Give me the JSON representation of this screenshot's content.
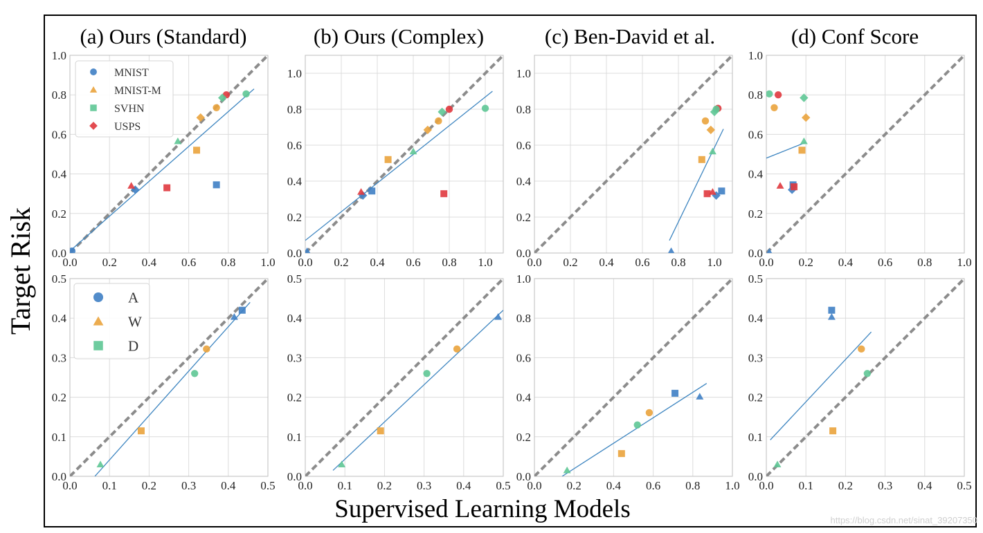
{
  "figure": {
    "ylabel": "Target Risk",
    "xlabel": "Supervised Learning Models",
    "watermark": "https://blog.csdn.net/sinat_39207350",
    "colors": {
      "blue": "#3f7fc4",
      "orange": "#eaa33c",
      "green": "#5ec795",
      "red": "#e0393e",
      "fit": "#3d85c0",
      "diagonal": "#8c8c8c",
      "grid": "#dcdcdc",
      "spine": "#bdbdbd"
    }
  },
  "legends": [
    {
      "panel": 0,
      "entries": [
        {
          "label": "MNIST",
          "color": "blue",
          "marker": "circle"
        },
        {
          "label": "MNIST-M",
          "color": "orange",
          "marker": "triangle"
        },
        {
          "label": "SVHN",
          "color": "green",
          "marker": "square"
        },
        {
          "label": "USPS",
          "color": "red",
          "marker": "diamond"
        }
      ]
    },
    {
      "panel": 4,
      "entries": [
        {
          "label": "A",
          "color": "blue",
          "marker": "circle"
        },
        {
          "label": "W",
          "color": "orange",
          "marker": "triangle"
        },
        {
          "label": "D",
          "color": "green",
          "marker": "square"
        }
      ]
    }
  ],
  "chart_data": [
    {
      "type": "scatter",
      "title": "(a) Ours (Standard)",
      "xlim": [
        0,
        1.0
      ],
      "ylim": [
        0,
        1.0
      ],
      "xticks": [
        "0.0",
        "0.2",
        "0.4",
        "0.6",
        "0.8",
        "1.0"
      ],
      "yticks": [
        "0.0",
        "0.2",
        "0.4",
        "0.6",
        "0.8",
        "1.0"
      ],
      "diagonal": true,
      "fit_line": [
        [
          0.0,
          0.01
        ],
        [
          0.93,
          0.83
        ]
      ],
      "points": [
        {
          "x": 0.01,
          "y": 0.01,
          "color": "blue",
          "marker": "circle"
        },
        {
          "x": 0.33,
          "y": 0.32,
          "color": "blue",
          "marker": "diamond"
        },
        {
          "x": 0.74,
          "y": 0.345,
          "color": "blue",
          "marker": "square"
        },
        {
          "x": 0.31,
          "y": 0.34,
          "color": "red",
          "marker": "triangle"
        },
        {
          "x": 0.49,
          "y": 0.33,
          "color": "red",
          "marker": "square"
        },
        {
          "x": 0.79,
          "y": 0.8,
          "color": "red",
          "marker": "circle"
        },
        {
          "x": 0.64,
          "y": 0.52,
          "color": "orange",
          "marker": "square"
        },
        {
          "x": 0.66,
          "y": 0.685,
          "color": "orange",
          "marker": "diamond"
        },
        {
          "x": 0.74,
          "y": 0.735,
          "color": "orange",
          "marker": "circle"
        },
        {
          "x": 0.545,
          "y": 0.565,
          "color": "green",
          "marker": "triangle"
        },
        {
          "x": 0.77,
          "y": 0.785,
          "color": "green",
          "marker": "diamond"
        },
        {
          "x": 0.89,
          "y": 0.805,
          "color": "green",
          "marker": "circle"
        }
      ]
    },
    {
      "type": "scatter",
      "title": "(b) Ours (Complex)",
      "xlim": [
        0,
        1.1
      ],
      "ylim": [
        0,
        1.1
      ],
      "xticks": [
        "0.0",
        "0.2",
        "0.4",
        "0.6",
        "0.8",
        "1.0"
      ],
      "yticks": [
        "0.0",
        "0.2",
        "0.4",
        "0.6",
        "0.8",
        "1.0"
      ],
      "diagonal": true,
      "fit_line": [
        [
          0.0,
          0.07
        ],
        [
          1.04,
          0.9
        ]
      ],
      "points": [
        {
          "x": 0.01,
          "y": 0.01,
          "color": "blue",
          "marker": "triangle"
        },
        {
          "x": 0.32,
          "y": 0.32,
          "color": "blue",
          "marker": "diamond"
        },
        {
          "x": 0.37,
          "y": 0.345,
          "color": "blue",
          "marker": "square"
        },
        {
          "x": 0.31,
          "y": 0.34,
          "color": "red",
          "marker": "triangle"
        },
        {
          "x": 0.77,
          "y": 0.33,
          "color": "red",
          "marker": "square"
        },
        {
          "x": 0.8,
          "y": 0.8,
          "color": "red",
          "marker": "circle"
        },
        {
          "x": 0.46,
          "y": 0.52,
          "color": "orange",
          "marker": "square"
        },
        {
          "x": 0.68,
          "y": 0.685,
          "color": "orange",
          "marker": "diamond"
        },
        {
          "x": 0.74,
          "y": 0.735,
          "color": "orange",
          "marker": "circle"
        },
        {
          "x": 0.6,
          "y": 0.565,
          "color": "green",
          "marker": "triangle"
        },
        {
          "x": 0.76,
          "y": 0.785,
          "color": "green",
          "marker": "diamond"
        },
        {
          "x": 1.0,
          "y": 0.805,
          "color": "green",
          "marker": "circle"
        }
      ]
    },
    {
      "type": "scatter",
      "title": "(c) Ben-David et al.",
      "xlim": [
        0,
        1.1
      ],
      "ylim": [
        0,
        1.1
      ],
      "xticks": [
        "0.0",
        "0.2",
        "0.4",
        "0.6",
        "0.8",
        "1.0"
      ],
      "yticks": [
        "0.0",
        "0.2",
        "0.4",
        "0.6",
        "0.8",
        "1.0"
      ],
      "diagonal": true,
      "fit_line": [
        [
          0.75,
          0.07
        ],
        [
          1.05,
          0.69
        ]
      ],
      "points": [
        {
          "x": 0.76,
          "y": 0.01,
          "color": "blue",
          "marker": "triangle"
        },
        {
          "x": 1.01,
          "y": 0.32,
          "color": "blue",
          "marker": "diamond"
        },
        {
          "x": 1.04,
          "y": 0.345,
          "color": "blue",
          "marker": "square"
        },
        {
          "x": 0.99,
          "y": 0.34,
          "color": "red",
          "marker": "triangle"
        },
        {
          "x": 0.96,
          "y": 0.33,
          "color": "red",
          "marker": "square"
        },
        {
          "x": 1.02,
          "y": 0.805,
          "color": "red",
          "marker": "circle"
        },
        {
          "x": 0.93,
          "y": 0.52,
          "color": "orange",
          "marker": "square"
        },
        {
          "x": 0.98,
          "y": 0.685,
          "color": "orange",
          "marker": "diamond"
        },
        {
          "x": 0.95,
          "y": 0.735,
          "color": "orange",
          "marker": "circle"
        },
        {
          "x": 0.99,
          "y": 0.565,
          "color": "green",
          "marker": "triangle"
        },
        {
          "x": 1.0,
          "y": 0.785,
          "color": "green",
          "marker": "diamond"
        },
        {
          "x": 1.01,
          "y": 0.8,
          "color": "green",
          "marker": "circle"
        }
      ]
    },
    {
      "type": "scatter",
      "title": "(d) Conf Score",
      "xlim": [
        0,
        1.0
      ],
      "ylim": [
        0,
        1.0
      ],
      "xticks": [
        "0.0",
        "0.2",
        "0.4",
        "0.6",
        "0.8",
        "1.0"
      ],
      "yticks": [
        "0.0",
        "0.2",
        "0.4",
        "0.6",
        "0.8",
        "1.0"
      ],
      "diagonal": true,
      "fit_line": [
        [
          0.0,
          0.48
        ],
        [
          0.2,
          0.56
        ]
      ],
      "points": [
        {
          "x": 0.015,
          "y": 0.005,
          "color": "blue",
          "marker": "triangle"
        },
        {
          "x": 0.13,
          "y": 0.32,
          "color": "blue",
          "marker": "diamond"
        },
        {
          "x": 0.135,
          "y": 0.345,
          "color": "blue",
          "marker": "square"
        },
        {
          "x": 0.07,
          "y": 0.34,
          "color": "red",
          "marker": "triangle"
        },
        {
          "x": 0.14,
          "y": 0.335,
          "color": "red",
          "marker": "square"
        },
        {
          "x": 0.06,
          "y": 0.8,
          "color": "red",
          "marker": "circle"
        },
        {
          "x": 0.18,
          "y": 0.52,
          "color": "orange",
          "marker": "square"
        },
        {
          "x": 0.2,
          "y": 0.685,
          "color": "orange",
          "marker": "diamond"
        },
        {
          "x": 0.04,
          "y": 0.735,
          "color": "orange",
          "marker": "circle"
        },
        {
          "x": 0.19,
          "y": 0.565,
          "color": "green",
          "marker": "triangle"
        },
        {
          "x": 0.19,
          "y": 0.785,
          "color": "green",
          "marker": "diamond"
        },
        {
          "x": 0.015,
          "y": 0.805,
          "color": "green",
          "marker": "circle"
        }
      ]
    },
    {
      "type": "scatter",
      "title": "",
      "xlim": [
        0,
        0.5
      ],
      "ylim": [
        0,
        0.5
      ],
      "xticks": [
        "0.0",
        "0.1",
        "0.2",
        "0.3",
        "0.4",
        "0.5"
      ],
      "yticks": [
        "0.0",
        "0.1",
        "0.2",
        "0.3",
        "0.4",
        "0.5"
      ],
      "diagonal": true,
      "fit_line": [
        [
          0.063,
          0.0
        ],
        [
          0.455,
          0.44
        ]
      ],
      "points": [
        {
          "x": 0.077,
          "y": 0.03,
          "color": "green",
          "marker": "triangle"
        },
        {
          "x": 0.18,
          "y": 0.115,
          "color": "orange",
          "marker": "square"
        },
        {
          "x": 0.315,
          "y": 0.26,
          "color": "green",
          "marker": "circle"
        },
        {
          "x": 0.345,
          "y": 0.322,
          "color": "orange",
          "marker": "circle"
        },
        {
          "x": 0.415,
          "y": 0.403,
          "color": "blue",
          "marker": "triangle"
        },
        {
          "x": 0.435,
          "y": 0.42,
          "color": "blue",
          "marker": "square"
        }
      ]
    },
    {
      "type": "scatter",
      "title": "",
      "xlim": [
        0,
        0.5
      ],
      "ylim": [
        0,
        0.5
      ],
      "xticks": [
        "0.0",
        "0.1",
        "0.2",
        "0.3",
        "0.4",
        "0.5"
      ],
      "yticks": [
        "0.0",
        "0.1",
        "0.2",
        "0.3",
        "0.4",
        "0.5"
      ],
      "diagonal": true,
      "fit_line": [
        [
          0.07,
          0.015
        ],
        [
          0.5,
          0.42
        ]
      ],
      "points": [
        {
          "x": 0.092,
          "y": 0.03,
          "color": "green",
          "marker": "triangle"
        },
        {
          "x": 0.19,
          "y": 0.115,
          "color": "orange",
          "marker": "square"
        },
        {
          "x": 0.307,
          "y": 0.26,
          "color": "green",
          "marker": "circle"
        },
        {
          "x": 0.383,
          "y": 0.322,
          "color": "orange",
          "marker": "circle"
        },
        {
          "x": 0.487,
          "y": 0.403,
          "color": "blue",
          "marker": "triangle"
        }
      ]
    },
    {
      "type": "scatter",
      "title": "",
      "xlim": [
        0,
        1.0
      ],
      "ylim": [
        0,
        1.0
      ],
      "xticks": [
        "0.0",
        "0.2",
        "0.4",
        "0.6",
        "0.8",
        "1.0"
      ],
      "yticks": [
        "0.0",
        "0.2",
        "0.4",
        "0.6",
        "0.8",
        "1.0"
      ],
      "diagonal": true,
      "fit_line": [
        [
          0.14,
          0.0
        ],
        [
          0.87,
          0.47
        ]
      ],
      "points": [
        {
          "x": 0.165,
          "y": 0.03,
          "color": "green",
          "marker": "triangle"
        },
        {
          "x": 0.44,
          "y": 0.115,
          "color": "orange",
          "marker": "square"
        },
        {
          "x": 0.52,
          "y": 0.26,
          "color": "green",
          "marker": "circle"
        },
        {
          "x": 0.58,
          "y": 0.322,
          "color": "orange",
          "marker": "circle"
        },
        {
          "x": 0.71,
          "y": 0.42,
          "color": "blue",
          "marker": "square"
        },
        {
          "x": 0.835,
          "y": 0.403,
          "color": "blue",
          "marker": "triangle"
        }
      ]
    },
    {
      "type": "scatter",
      "title": "",
      "xlim": [
        0,
        0.5
      ],
      "ylim": [
        0,
        0.5
      ],
      "xticks": [
        "0.0",
        "0.1",
        "0.2",
        "0.3",
        "0.4",
        "0.5"
      ],
      "yticks": [
        "0.0",
        "0.1",
        "0.2",
        "0.3",
        "0.4",
        "0.5"
      ],
      "diagonal": true,
      "fit_line": [
        [
          0.01,
          0.092
        ],
        [
          0.265,
          0.365
        ]
      ],
      "points": [
        {
          "x": 0.028,
          "y": 0.03,
          "color": "green",
          "marker": "triangle"
        },
        {
          "x": 0.168,
          "y": 0.115,
          "color": "orange",
          "marker": "square"
        },
        {
          "x": 0.24,
          "y": 0.322,
          "color": "orange",
          "marker": "circle"
        },
        {
          "x": 0.255,
          "y": 0.26,
          "color": "green",
          "marker": "circle"
        },
        {
          "x": 0.165,
          "y": 0.403,
          "color": "blue",
          "marker": "triangle"
        },
        {
          "x": 0.165,
          "y": 0.42,
          "color": "blue",
          "marker": "square"
        }
      ]
    }
  ]
}
